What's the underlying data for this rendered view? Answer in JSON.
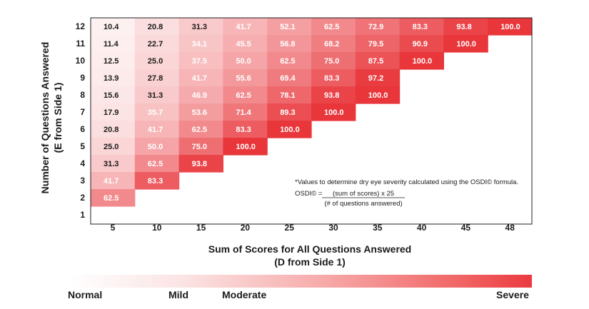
{
  "chart_data": {
    "type": "heatmap",
    "title": "",
    "xlabel": "Sum of Scores for All Questions Answered",
    "xlabel_sub": "(D from Side 1)",
    "ylabel": "Number of Questions Answered",
    "ylabel_sub": "(E from Side 1)",
    "x_categories": [
      "5",
      "10",
      "15",
      "20",
      "25",
      "30",
      "35",
      "40",
      "45",
      "48"
    ],
    "y_categories": [
      "12",
      "11",
      "10",
      "9",
      "8",
      "7",
      "6",
      "5",
      "4",
      "3",
      "2",
      "1"
    ],
    "values": [
      [
        10.4,
        20.8,
        31.3,
        41.7,
        52.1,
        62.5,
        72.9,
        83.3,
        93.8,
        100.0
      ],
      [
        11.4,
        22.7,
        34.1,
        45.5,
        56.8,
        68.2,
        79.5,
        90.9,
        100.0,
        null
      ],
      [
        12.5,
        25.0,
        37.5,
        50.0,
        62.5,
        75.0,
        87.5,
        100.0,
        null,
        null
      ],
      [
        13.9,
        27.8,
        41.7,
        55.6,
        69.4,
        83.3,
        97.2,
        null,
        null,
        null
      ],
      [
        15.6,
        31.3,
        46.9,
        62.5,
        78.1,
        93.8,
        100.0,
        null,
        null,
        null
      ],
      [
        17.9,
        35.7,
        53.6,
        71.4,
        89.3,
        100.0,
        null,
        null,
        null,
        null
      ],
      [
        20.8,
        41.7,
        62.5,
        83.3,
        100.0,
        null,
        null,
        null,
        null,
        null
      ],
      [
        25.0,
        50.0,
        75.0,
        100.0,
        null,
        null,
        null,
        null,
        null,
        null
      ],
      [
        31.3,
        62.5,
        93.8,
        null,
        null,
        null,
        null,
        null,
        null,
        null
      ],
      [
        41.7,
        83.3,
        null,
        null,
        null,
        null,
        null,
        null,
        null,
        null
      ],
      [
        62.5,
        null,
        null,
        null,
        null,
        null,
        null,
        null,
        null,
        null
      ],
      [
        null,
        null,
        null,
        null,
        null,
        null,
        null,
        null,
        null,
        null
      ]
    ],
    "value_format": "one-decimal",
    "color_scale": {
      "low": "#ffffff",
      "high": "#e8363b",
      "text_dark": "#1a1a1a",
      "text_light": "#ffffff"
    },
    "annotation": {
      "line1": "*Values to determine dry eye severity calculated using the OSDI© formula.",
      "formula_lhs": "OSDI© =",
      "numerator": "(sum of scores) x 25",
      "denominator": "(# of questions answered)"
    },
    "severity_scale": {
      "labels": [
        "Normal",
        "Mild",
        "Moderate",
        "Severe"
      ]
    }
  }
}
